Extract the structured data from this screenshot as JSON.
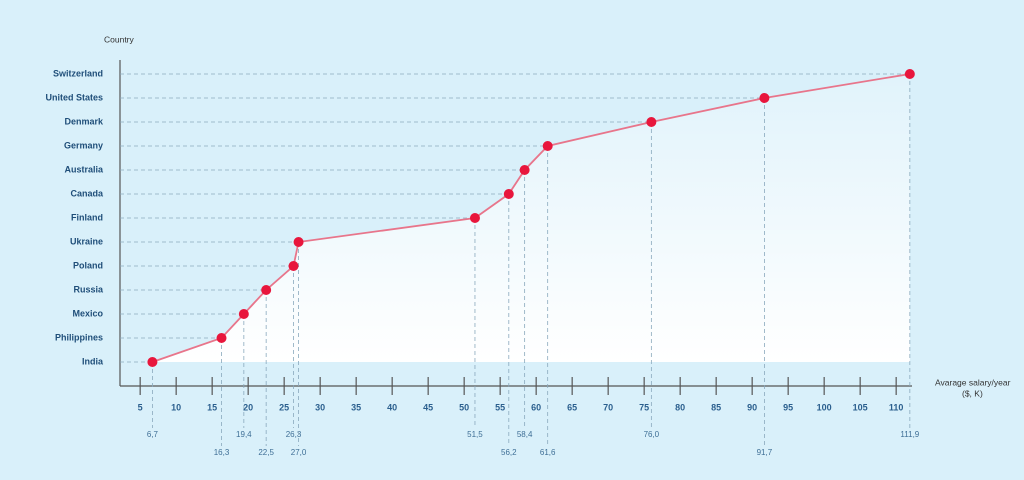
{
  "chart_data": {
    "type": "line",
    "ylabel": "Country",
    "xlabel": "Avarage salary/year",
    "xlabel_unit": "($, K)",
    "categories": [
      "India",
      "Philippines",
      "Mexico",
      "Russia",
      "Poland",
      "Ukraine",
      "Finland",
      "Canada",
      "Australia",
      "Germany",
      "Denmark",
      "United States",
      "Switzerland"
    ],
    "values": [
      6.7,
      16.3,
      19.4,
      22.5,
      26.3,
      27.0,
      51.5,
      56.2,
      58.4,
      61.6,
      76.0,
      91.7,
      111.9
    ],
    "value_labels": [
      "6,7",
      "16,3",
      "19,4",
      "22,5",
      "26,3",
      "27,0",
      "51,5",
      "56,2",
      "58,4",
      "61,6",
      "76,0",
      "91,7",
      "111,9"
    ],
    "xlim": [
      2.2,
      112.2
    ],
    "xticks": [
      5,
      10,
      15,
      20,
      25,
      30,
      35,
      40,
      45,
      50,
      55,
      60,
      65,
      70,
      75,
      80,
      85,
      90,
      95,
      100,
      105,
      110
    ],
    "line_color": "#e8758b",
    "marker_color": "#e8163c",
    "grid": true
  }
}
